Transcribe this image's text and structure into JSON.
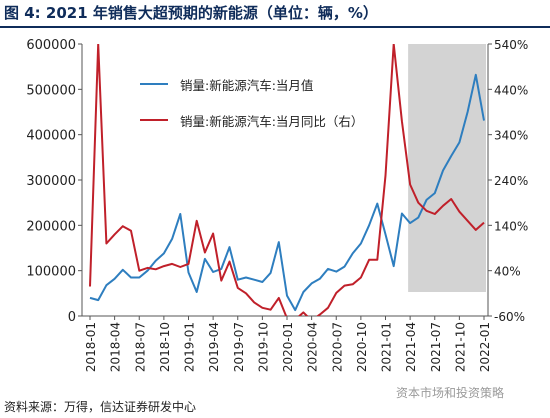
{
  "figure": {
    "title": "图 4:  2021 年销售大超预期的新能源（单位：辆，%）",
    "source": "资料来源：万得，信达证券研发中心",
    "watermark": "资本市场和投资策略"
  },
  "colors": {
    "blue": "#2e7ebf",
    "red": "#c0202a",
    "shade": "#d3d3d3",
    "axis": "#555555"
  },
  "chart_data": {
    "type": "line",
    "x": [
      "2018-01",
      "2018-02",
      "2018-03",
      "2018-04",
      "2018-05",
      "2018-06",
      "2018-07",
      "2018-08",
      "2018-09",
      "2018-10",
      "2018-11",
      "2018-12",
      "2019-01",
      "2019-02",
      "2019-03",
      "2019-04",
      "2019-05",
      "2019-06",
      "2019-07",
      "2019-08",
      "2019-09",
      "2019-10",
      "2019-11",
      "2019-12",
      "2020-01",
      "2020-02",
      "2020-03",
      "2020-04",
      "2020-05",
      "2020-06",
      "2020-07",
      "2020-08",
      "2020-09",
      "2020-10",
      "2020-11",
      "2020-12",
      "2021-01",
      "2021-02",
      "2021-03",
      "2021-04",
      "2021-05",
      "2021-06",
      "2021-07",
      "2021-08",
      "2021-09",
      "2021-10",
      "2021-11",
      "2021-12",
      "2022-01"
    ],
    "xticklabels": [
      "2018-01",
      "2018-04",
      "2018-07",
      "2018-10",
      "2019-01",
      "2019-04",
      "2019-07",
      "2019-10",
      "2020-01",
      "2020-04",
      "2020-07",
      "2020-10",
      "2021-01",
      "2021-04",
      "2021-07",
      "2021-10",
      "2022-01"
    ],
    "yticks_left": [
      "0",
      "100000",
      "200000",
      "300000",
      "400000",
      "500000",
      "600000"
    ],
    "yticks_right": [
      "-60%",
      "40%",
      "140%",
      "240%",
      "340%",
      "440%",
      "540%"
    ],
    "ylim_left": [
      0,
      600000
    ],
    "ylim_right": [
      -60,
      540
    ],
    "shaded_region": [
      "2021-04",
      "2022-01"
    ],
    "series": [
      {
        "name": "销量:新能源汽车:当月值",
        "axis": "left",
        "color": "#2e7ebf",
        "values": [
          40000,
          35000,
          68000,
          82000,
          102000,
          85000,
          85000,
          100000,
          122000,
          138000,
          170000,
          225000,
          96000,
          53000,
          126000,
          97000,
          104000,
          152000,
          80000,
          85000,
          80000,
          75000,
          95000,
          163000,
          45000,
          13000,
          53000,
          72000,
          82000,
          104000,
          98000,
          109000,
          138000,
          160000,
          200000,
          248000,
          180000,
          110000,
          226000,
          205000,
          217000,
          256000,
          271000,
          321000,
          353000,
          383000,
          450000,
          532000,
          431000
        ]
      },
      {
        "name": "销量:新能源汽车:当月同比（右）",
        "axis": "right",
        "color": "#c0202a",
        "values": [
          5,
          540,
          100,
          120,
          138,
          128,
          40,
          46,
          43,
          50,
          55,
          48,
          55,
          150,
          80,
          122,
          18,
          60,
          2,
          -10,
          -30,
          -42,
          -46,
          -20,
          -65,
          -68,
          -52,
          -70,
          -57,
          -42,
          -9,
          7,
          10,
          25,
          64,
          64,
          250,
          540,
          370,
          230,
          190,
          172,
          165,
          183,
          198,
          170,
          150,
          130,
          146
        ]
      }
    ]
  }
}
